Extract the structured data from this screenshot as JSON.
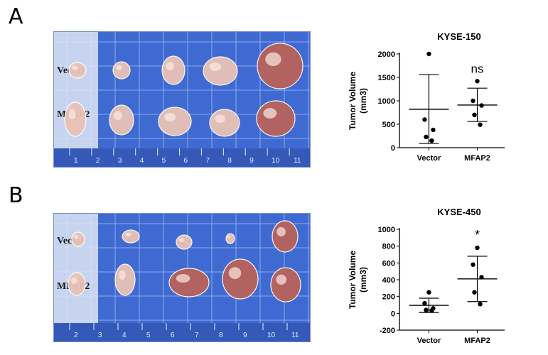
{
  "panels": [
    {
      "letter": "A",
      "photo": {
        "rows": [
          "Vector",
          "MFAP2"
        ],
        "ruler_numbers": [
          "1",
          "2",
          "3",
          "4",
          "5",
          "6",
          "7",
          "8",
          "9",
          "10",
          "11"
        ]
      }
    },
    {
      "letter": "B",
      "photo": {
        "rows": [
          "Vector",
          "MFAP2"
        ],
        "ruler_numbers": [
          "2",
          "3",
          "4",
          "5",
          "6",
          "7",
          "8",
          "9",
          "10",
          "11"
        ]
      }
    }
  ],
  "colors": {
    "grid_blue": "#3f6ad2",
    "line_blue": "#cfe0ff",
    "tumor": "#e9c2b6",
    "tumor_dark": "#b9625a",
    "label_text": "#1a1a1a"
  },
  "chart_data": [
    {
      "type": "scatter",
      "title": "KYSE-150",
      "ylabel": "Tumor Volume (mm3)",
      "ylabel_lines": [
        "Tumor Volume",
        "(mm3)"
      ],
      "categories": [
        "Vector",
        "MFAP2"
      ],
      "ylim": [
        0,
        2000
      ],
      "yticks": [
        0,
        500,
        1000,
        1500,
        2000
      ],
      "series": [
        {
          "values": [
            2000,
            600,
            380,
            230,
            150
          ],
          "mean": 820,
          "sd_upper": 1560,
          "sd_lower": 90
        },
        {
          "values": [
            1420,
            1000,
            900,
            700,
            490
          ],
          "mean": 910,
          "sd_upper": 1270,
          "sd_lower": 560
        }
      ],
      "annotation": "ns",
      "annotation_category": "MFAP2"
    },
    {
      "type": "scatter",
      "title": "KYSE-450",
      "ylabel": "Tumor Volume (mm3)",
      "ylabel_lines": [
        "Tumor Volume",
        "(mm3)"
      ],
      "categories": [
        "Vector",
        "MFAP2"
      ],
      "ylim": [
        -200,
        1000
      ],
      "yticks": [
        -200,
        0,
        200,
        400,
        600,
        800,
        1000
      ],
      "series": [
        {
          "values": [
            250,
            120,
            60,
            40,
            35
          ],
          "mean": 95,
          "sd_upper": 180,
          "sd_lower": 10
        },
        {
          "values": [
            780,
            580,
            430,
            250,
            110
          ],
          "mean": 410,
          "sd_upper": 680,
          "sd_lower": 140
        }
      ],
      "annotation": "*",
      "annotation_category": "MFAP2"
    }
  ]
}
